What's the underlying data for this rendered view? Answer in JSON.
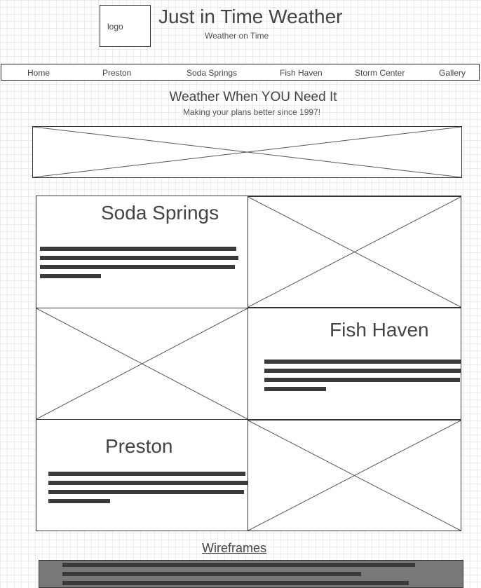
{
  "header": {
    "logo_label": "logo",
    "title": "Just in Time Weather",
    "tagline": "Weather on Time"
  },
  "nav": {
    "items": [
      "Home",
      "Preston",
      "Soda Springs",
      "Fish Haven",
      "Storm Center",
      "Gallery"
    ]
  },
  "hero": {
    "headline": "Weather When YOU Need It",
    "subhead": "Making your plans better since 1997!"
  },
  "sections": [
    {
      "title": "Soda Springs"
    },
    {
      "title": "Fish Haven"
    },
    {
      "title": "Preston"
    }
  ],
  "footer": {
    "link_label": "Wireframes"
  },
  "colors": {
    "line": "#333333",
    "text": "#444444",
    "footer_bg": "#787878",
    "grid": "#ececec"
  }
}
